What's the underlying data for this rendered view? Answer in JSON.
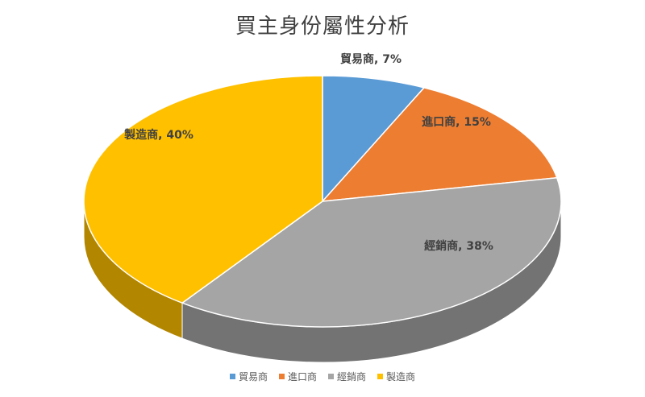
{
  "chart_data": {
    "type": "pie",
    "title": "買主身份屬性分析",
    "labels": [
      "貿易商",
      "進口商",
      "經銷商",
      "製造商"
    ],
    "values": [
      7,
      15,
      38,
      40
    ],
    "value_unit": "%",
    "data_labels": [
      "貿易商, 7%",
      "進口商, 15%",
      "經銷商, 38%",
      "製造商, 40%"
    ],
    "colors": [
      "#5b9bd5",
      "#ed7d31",
      "#a5a5a5",
      "#ffc000"
    ],
    "style": "3d",
    "legend_position": "bottom"
  }
}
